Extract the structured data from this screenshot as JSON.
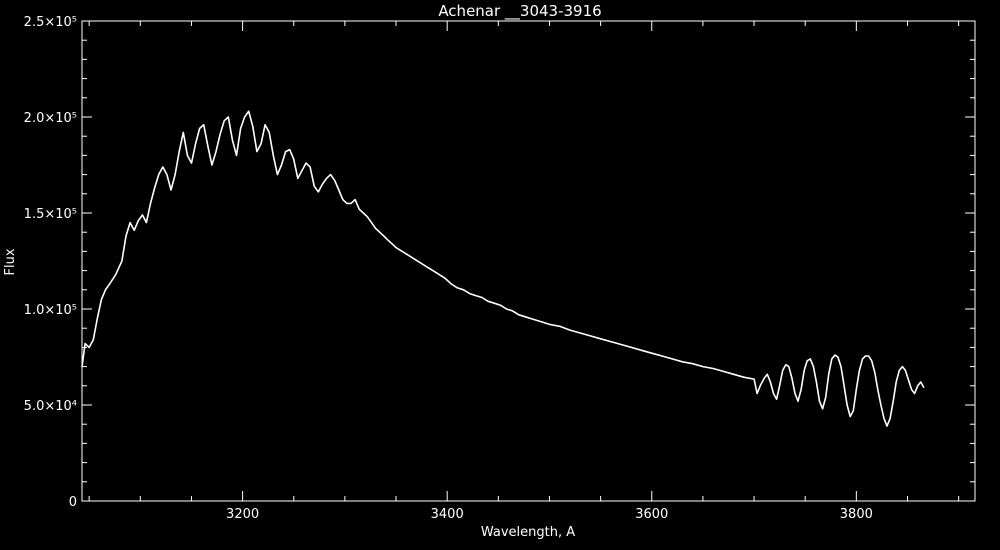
{
  "chart_data": {
    "type": "line",
    "title": "Achenar __3043-3916",
    "xlabel": "Wavelength, A",
    "ylabel": "Flux",
    "xlim": [
      3043,
      3916
    ],
    "ylim": [
      0,
      250000
    ],
    "grid": false,
    "x_ticks": [
      {
        "value": 3200,
        "label": "3200"
      },
      {
        "value": 3400,
        "label": "3400"
      },
      {
        "value": 3600,
        "label": "3600"
      },
      {
        "value": 3800,
        "label": "3800"
      }
    ],
    "y_ticks": [
      {
        "value": 0,
        "label": "0"
      },
      {
        "value": 50000,
        "label": "5.0×10⁴"
      },
      {
        "value": 100000,
        "label": "1.0×10⁵"
      },
      {
        "value": 150000,
        "label": "1.5×10⁵"
      },
      {
        "value": 200000,
        "label": "2.0×10⁵"
      },
      {
        "value": 250000,
        "label": "2.5×10⁵"
      }
    ],
    "series": [
      {
        "color": "#ffffff",
        "points": [
          [
            3043,
            70000
          ],
          [
            3046,
            82000
          ],
          [
            3050,
            80000
          ],
          [
            3054,
            84000
          ],
          [
            3058,
            95000
          ],
          [
            3062,
            105000
          ],
          [
            3066,
            110000
          ],
          [
            3070,
            113000
          ],
          [
            3076,
            118000
          ],
          [
            3082,
            125000
          ],
          [
            3086,
            138000
          ],
          [
            3090,
            145000
          ],
          [
            3094,
            141000
          ],
          [
            3098,
            146000
          ],
          [
            3102,
            149000
          ],
          [
            3106,
            145000
          ],
          [
            3110,
            155000
          ],
          [
            3114,
            163000
          ],
          [
            3118,
            170000
          ],
          [
            3122,
            174000
          ],
          [
            3126,
            170000
          ],
          [
            3130,
            162000
          ],
          [
            3134,
            170000
          ],
          [
            3138,
            182000
          ],
          [
            3142,
            192000
          ],
          [
            3146,
            180000
          ],
          [
            3150,
            176000
          ],
          [
            3154,
            186000
          ],
          [
            3158,
            194000
          ],
          [
            3162,
            196000
          ],
          [
            3166,
            185000
          ],
          [
            3170,
            175000
          ],
          [
            3174,
            182000
          ],
          [
            3178,
            191000
          ],
          [
            3182,
            198000
          ],
          [
            3186,
            200000
          ],
          [
            3190,
            188000
          ],
          [
            3194,
            180000
          ],
          [
            3198,
            194000
          ],
          [
            3202,
            200000
          ],
          [
            3206,
            203000
          ],
          [
            3210,
            195000
          ],
          [
            3214,
            182000
          ],
          [
            3218,
            186000
          ],
          [
            3222,
            196000
          ],
          [
            3226,
            192000
          ],
          [
            3230,
            180000
          ],
          [
            3234,
            170000
          ],
          [
            3238,
            175000
          ],
          [
            3242,
            182000
          ],
          [
            3246,
            183000
          ],
          [
            3250,
            178000
          ],
          [
            3254,
            168000
          ],
          [
            3258,
            172000
          ],
          [
            3262,
            176000
          ],
          [
            3266,
            174000
          ],
          [
            3270,
            164000
          ],
          [
            3274,
            161000
          ],
          [
            3278,
            165000
          ],
          [
            3282,
            168000
          ],
          [
            3286,
            170000
          ],
          [
            3290,
            167000
          ],
          [
            3294,
            162000
          ],
          [
            3298,
            157000
          ],
          [
            3302,
            155000
          ],
          [
            3306,
            155000
          ],
          [
            3310,
            157000
          ],
          [
            3314,
            152000
          ],
          [
            3318,
            150000
          ],
          [
            3322,
            148000
          ],
          [
            3326,
            145000
          ],
          [
            3330,
            142000
          ],
          [
            3334,
            140000
          ],
          [
            3338,
            138000
          ],
          [
            3342,
            136000
          ],
          [
            3346,
            134000
          ],
          [
            3350,
            132000
          ],
          [
            3356,
            130000
          ],
          [
            3362,
            128000
          ],
          [
            3368,
            126000
          ],
          [
            3374,
            124000
          ],
          [
            3380,
            122000
          ],
          [
            3386,
            120000
          ],
          [
            3392,
            118000
          ],
          [
            3398,
            116000
          ],
          [
            3404,
            113000
          ],
          [
            3410,
            111000
          ],
          [
            3416,
            110000
          ],
          [
            3422,
            108000
          ],
          [
            3428,
            107000
          ],
          [
            3434,
            106000
          ],
          [
            3440,
            104000
          ],
          [
            3446,
            103000
          ],
          [
            3452,
            102000
          ],
          [
            3458,
            100000
          ],
          [
            3464,
            99000
          ],
          [
            3470,
            97000
          ],
          [
            3476,
            96000
          ],
          [
            3482,
            95000
          ],
          [
            3488,
            94000
          ],
          [
            3494,
            93000
          ],
          [
            3500,
            92000
          ],
          [
            3510,
            91000
          ],
          [
            3520,
            89000
          ],
          [
            3530,
            87500
          ],
          [
            3540,
            86000
          ],
          [
            3550,
            84500
          ],
          [
            3560,
            83000
          ],
          [
            3570,
            81500
          ],
          [
            3580,
            80000
          ],
          [
            3590,
            78500
          ],
          [
            3600,
            77000
          ],
          [
            3610,
            75500
          ],
          [
            3620,
            74000
          ],
          [
            3630,
            72500
          ],
          [
            3640,
            71500
          ],
          [
            3650,
            70000
          ],
          [
            3660,
            69000
          ],
          [
            3670,
            67500
          ],
          [
            3680,
            66000
          ],
          [
            3690,
            64500
          ],
          [
            3700,
            63500
          ],
          [
            3703,
            56000
          ],
          [
            3706,
            60000
          ],
          [
            3710,
            64000
          ],
          [
            3713,
            66000
          ],
          [
            3716,
            62000
          ],
          [
            3719,
            56000
          ],
          [
            3722,
            53000
          ],
          [
            3725,
            60000
          ],
          [
            3728,
            68000
          ],
          [
            3731,
            71000
          ],
          [
            3734,
            70000
          ],
          [
            3737,
            64000
          ],
          [
            3740,
            56000
          ],
          [
            3743,
            52000
          ],
          [
            3746,
            58000
          ],
          [
            3749,
            68000
          ],
          [
            3752,
            73000
          ],
          [
            3755,
            74000
          ],
          [
            3758,
            70000
          ],
          [
            3761,
            62000
          ],
          [
            3764,
            52000
          ],
          [
            3767,
            48000
          ],
          [
            3770,
            54000
          ],
          [
            3773,
            66000
          ],
          [
            3776,
            74000
          ],
          [
            3779,
            76000
          ],
          [
            3782,
            75000
          ],
          [
            3785,
            70000
          ],
          [
            3788,
            60000
          ],
          [
            3791,
            50000
          ],
          [
            3794,
            44000
          ],
          [
            3797,
            47000
          ],
          [
            3800,
            58000
          ],
          [
            3803,
            68000
          ],
          [
            3806,
            74000
          ],
          [
            3809,
            75500
          ],
          [
            3812,
            75500
          ],
          [
            3815,
            73000
          ],
          [
            3818,
            67000
          ],
          [
            3821,
            58000
          ],
          [
            3824,
            50000
          ],
          [
            3827,
            43000
          ],
          [
            3830,
            39000
          ],
          [
            3833,
            43000
          ],
          [
            3836,
            52000
          ],
          [
            3839,
            62000
          ],
          [
            3842,
            68000
          ],
          [
            3845,
            70000
          ],
          [
            3848,
            68000
          ],
          [
            3851,
            63000
          ],
          [
            3854,
            58000
          ],
          [
            3857,
            56000
          ],
          [
            3860,
            60000
          ],
          [
            3863,
            62000
          ],
          [
            3866,
            59000
          ]
        ]
      }
    ]
  }
}
